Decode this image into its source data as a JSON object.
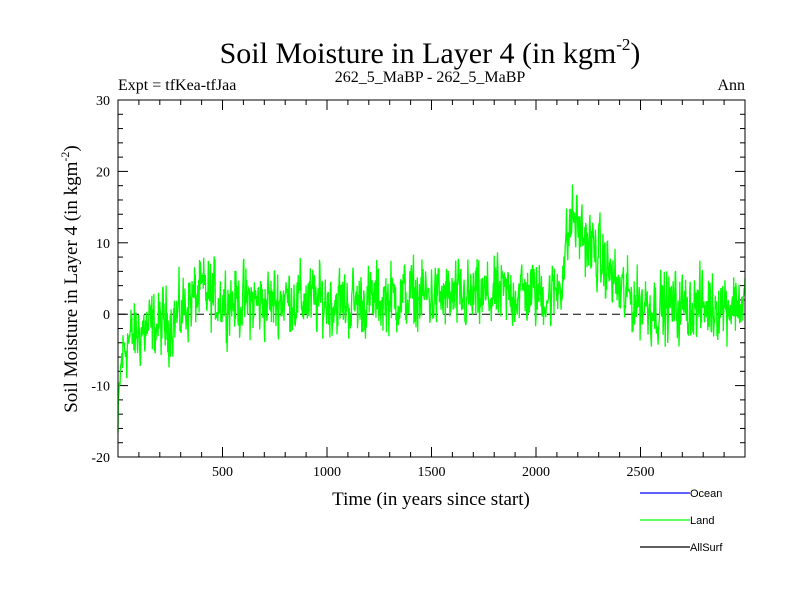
{
  "chart_data": {
    "type": "line",
    "title": "Soil Moisture in Layer 4 (in kgm",
    "title_superscript": "-2",
    "title_suffix": ")",
    "subtitle_left": "Expt = tfKea-tfJaa",
    "subtitle_center": "262_5_MaBP - 262_5_MaBP",
    "subtitle_right": "Ann",
    "xlabel": "Time (in years since start)",
    "ylabel": "Soil Moisture in Layer 4 (in kgm",
    "ylabel_superscript": "-2",
    "ylabel_suffix": ")",
    "xlim": [
      0,
      3000
    ],
    "ylim": [
      -20,
      30
    ],
    "x_ticks": [
      500,
      1000,
      1500,
      2000,
      2500
    ],
    "y_ticks": [
      -20,
      -10,
      0,
      10,
      20,
      30
    ],
    "zero_line": "dashed",
    "grid": false,
    "legend_position": "bottom-right",
    "legend": [
      {
        "name": "Ocean",
        "color": "#0000ff"
      },
      {
        "name": "Land",
        "color": "#00ff00"
      },
      {
        "name": "AllSurf",
        "color": "#000000"
      }
    ],
    "series": [
      {
        "name": "Land",
        "color": "#00ff00",
        "x": [
          0,
          10,
          20,
          40,
          60,
          80,
          100,
          150,
          200,
          250,
          300,
          330,
          350,
          400,
          420,
          450,
          500,
          600,
          700,
          800,
          900,
          1000,
          1100,
          1200,
          1300,
          1400,
          1500,
          1600,
          1700,
          1800,
          1900,
          2000,
          2080,
          2120,
          2150,
          2160,
          2180,
          2200,
          2250,
          2300,
          2350,
          2400,
          2500,
          2600,
          2700,
          2800,
          2900,
          3000
        ],
        "values": [
          -17,
          -9,
          -6,
          -4,
          -3.5,
          -3,
          -2.5,
          -2,
          -1.5,
          -1,
          0,
          1.5,
          2,
          3,
          3,
          2.5,
          2,
          1.8,
          1.5,
          2.2,
          2,
          1.8,
          1.5,
          1.8,
          2.2,
          2.5,
          2.5,
          2.2,
          2.2,
          2.5,
          3,
          3,
          2.5,
          5,
          10,
          12,
          14,
          12,
          10,
          8,
          6,
          3,
          1.5,
          1,
          1,
          1,
          1.5,
          1.5
        ],
        "noise_amplitude": 3.3
      }
    ]
  }
}
